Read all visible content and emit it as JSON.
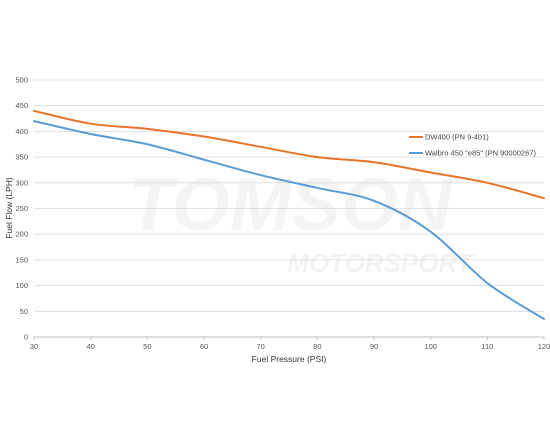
{
  "chart_data": {
    "type": "line",
    "xlabel": "Fuel Pressure (PSI)",
    "ylabel": "Fuel Flow (LPH)",
    "xlim": [
      30,
      120
    ],
    "ylim": [
      0,
      500
    ],
    "x_ticks": [
      30,
      40,
      50,
      60,
      70,
      80,
      90,
      100,
      110,
      120
    ],
    "y_ticks": [
      0,
      50,
      100,
      150,
      200,
      250,
      300,
      350,
      400,
      450,
      500
    ],
    "grid": "horizontal",
    "legend_position": "right",
    "series": [
      {
        "name": "DW400 (PN 9-401)",
        "color": "#e8742a",
        "x": [
          30,
          40,
          50,
          60,
          70,
          80,
          90,
          100,
          110,
          120
        ],
        "y": [
          440,
          415,
          405,
          390,
          370,
          350,
          340,
          320,
          300,
          270
        ]
      },
      {
        "name": "Walbro 450 \"e85\" (PN 90000267)",
        "color": "#5b9bd5",
        "x": [
          30,
          40,
          50,
          60,
          70,
          80,
          90,
          100,
          110,
          120
        ],
        "y": [
          420,
          395,
          375,
          345,
          315,
          290,
          265,
          205,
          105,
          35
        ]
      }
    ]
  },
  "watermark": {
    "main": "TOMSON",
    "sub": "MOTORSPORT"
  }
}
